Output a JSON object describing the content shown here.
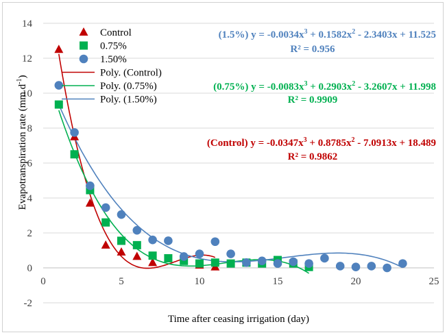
{
  "chart_data": {
    "type": "scatter",
    "xlabel": "Time after ceasing irrigation (day)",
    "ylabel": "Evapotranspiration rate (mm d",
    "ylabel_sup": "-1",
    "ylabel_end": ")",
    "xlim": [
      0,
      25
    ],
    "ylim": [
      -2,
      14
    ],
    "x_ticks": [
      0,
      5,
      10,
      15,
      20,
      25
    ],
    "y_ticks": [
      -2,
      0,
      2,
      4,
      6,
      8,
      10,
      12,
      14
    ],
    "grid": "horizontal",
    "legend": "top-left",
    "series": [
      {
        "name": "Control",
        "marker": "triangle",
        "color": "#C00000",
        "x": [
          1,
          2,
          3,
          4,
          5,
          6,
          7,
          10,
          11
        ],
        "y": [
          12.5,
          7.5,
          3.7,
          1.3,
          0.9,
          0.65,
          0.3,
          0.15,
          0.05
        ]
      },
      {
        "name": "0.75%",
        "marker": "square",
        "color": "#00B050",
        "x": [
          1,
          2,
          3,
          4,
          5,
          6,
          7,
          8,
          9,
          10,
          11,
          12,
          13,
          14,
          15,
          16,
          17
        ],
        "y": [
          9.35,
          6.5,
          4.45,
          2.6,
          1.55,
          1.3,
          0.7,
          0.55,
          0.4,
          0.25,
          0.3,
          0.25,
          0.3,
          0.25,
          0.45,
          0.25,
          0.05
        ]
      },
      {
        "name": "1.50%",
        "marker": "circle",
        "color": "#4F81BD",
        "x": [
          1,
          2,
          3,
          4,
          5,
          6,
          7,
          8,
          9,
          10,
          11,
          12,
          13,
          14,
          15,
          16,
          17,
          18,
          19,
          20,
          21,
          22,
          23
        ],
        "y": [
          10.45,
          7.75,
          4.7,
          3.45,
          3.05,
          2.15,
          1.6,
          1.55,
          0.65,
          0.8,
          1.5,
          0.8,
          0.3,
          0.4,
          0.25,
          0.35,
          0.25,
          0.55,
          0.1,
          0.05,
          0.1,
          0.0,
          0.25
        ]
      }
    ],
    "trendlines": [
      {
        "name": "Poly. (Control)",
        "color": "#C00000",
        "coef": [
          -0.0347,
          0.8785,
          -7.0913,
          18.489
        ],
        "x_range": [
          1,
          11
        ]
      },
      {
        "name": "Poly. (0.75%)",
        "color": "#00B050",
        "coef": [
          -0.0083,
          0.2903,
          -3.2607,
          11.998
        ],
        "x_range": [
          1,
          17
        ]
      },
      {
        "name": "Poly. (1.50%)",
        "color": "#4F81BD",
        "coef": [
          -0.0034,
          0.1582,
          -2.3403,
          11.525
        ],
        "x_range": [
          1,
          23
        ]
      }
    ],
    "annotations": [
      {
        "lines": [
          "(1.5%)   y = -0.0034x",
          "3",
          " + 0.1582x",
          "2",
          " - 2.3403x + 11.525"
        ],
        "r2": "R² = 0.956",
        "color": "#4F81BD"
      },
      {
        "lines": [
          "(0.75%) y = -0.0083x",
          "3",
          " + 0.2903x",
          "2",
          " - 3.2607x + 11.998"
        ],
        "r2": "R² = 0.9909",
        "color": "#00B050"
      },
      {
        "lines": [
          "(Control) y = -0.0347x",
          "3",
          " + 0.8785x",
          "2",
          " - 7.0913x + 18.489"
        ],
        "r2": "R² = 0.9862",
        "color": "#C00000"
      }
    ]
  }
}
